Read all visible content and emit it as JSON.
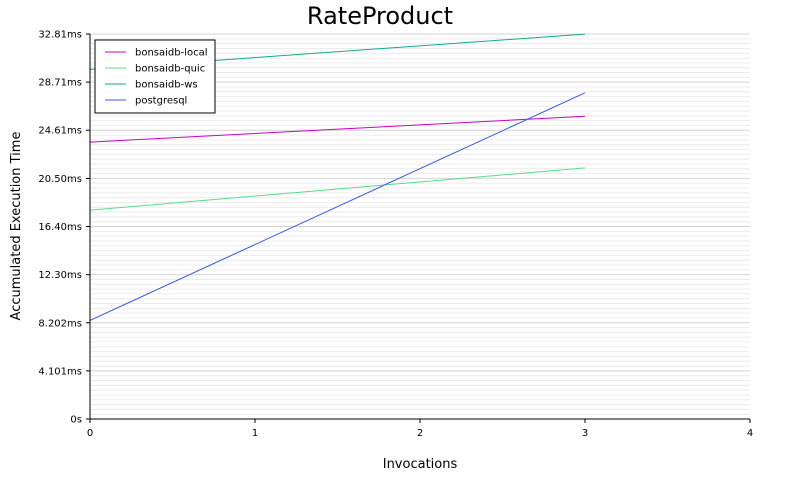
{
  "chart_data": {
    "type": "line",
    "title": "RateProduct",
    "xlabel": "Invocations",
    "ylabel": "Accumulated Execution Time",
    "xlim": [
      0,
      4
    ],
    "ylim": [
      0,
      32.81
    ],
    "x_ticks": [
      "0",
      "1",
      "2",
      "3",
      "4"
    ],
    "y_ticks": [
      {
        "value": 0,
        "label": "0s"
      },
      {
        "value": 4.101,
        "label": "4.101ms"
      },
      {
        "value": 8.202,
        "label": "8.202ms"
      },
      {
        "value": 12.3,
        "label": "12.30ms"
      },
      {
        "value": 16.4,
        "label": "16.40ms"
      },
      {
        "value": 20.5,
        "label": "20.50ms"
      },
      {
        "value": 24.61,
        "label": "24.61ms"
      },
      {
        "value": 28.71,
        "label": "28.71ms"
      },
      {
        "value": 32.81,
        "label": "32.81ms"
      }
    ],
    "grid": true,
    "legend_position": "top-left",
    "series": [
      {
        "name": "bonsaidb-local",
        "color": "#cc00cc",
        "x": [
          0,
          3
        ],
        "y": [
          23.6,
          25.8
        ]
      },
      {
        "name": "bonsaidb-quic",
        "color": "#55dd88",
        "x": [
          0,
          3
        ],
        "y": [
          17.8,
          21.4
        ]
      },
      {
        "name": "bonsaidb-ws",
        "color": "#11aa99",
        "x": [
          0,
          3
        ],
        "y": [
          29.8,
          32.8
        ]
      },
      {
        "name": "postgresql",
        "color": "#3355ee",
        "x": [
          0,
          3
        ],
        "y": [
          8.4,
          27.8
        ]
      }
    ]
  }
}
